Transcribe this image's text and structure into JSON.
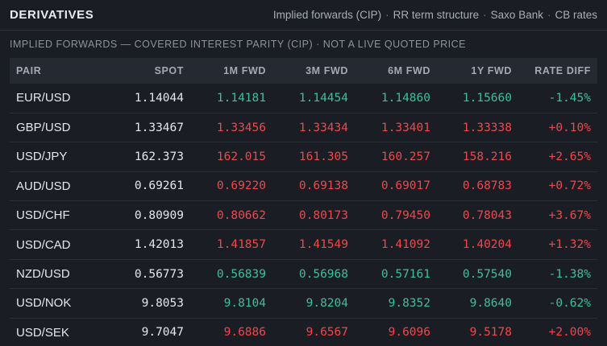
{
  "header": {
    "title": "DERIVATIVES",
    "tabs": [
      "Implied forwards (CIP)",
      "RR term structure",
      "Saxo Bank",
      "CB rates"
    ],
    "separator": "·"
  },
  "subtitle": "IMPLIED FORWARDS — COVERED INTEREST PARITY (CIP) · NOT A LIVE QUOTED PRICE",
  "colors": {
    "positive": "#3fbf9c",
    "negative": "#f0474c",
    "background": "#1a1d23",
    "header_row": "#252931"
  },
  "table": {
    "columns": [
      "PAIR",
      "SPOT",
      "1M FWD",
      "3M FWD",
      "6M FWD",
      "1Y FWD",
      "RATE DIFF"
    ],
    "rows": [
      {
        "pair": "EUR/USD",
        "spot": "1.14044",
        "fwd": [
          "1.14181",
          "1.14454",
          "1.14860",
          "1.15660"
        ],
        "diff": "-1.45%",
        "dir": "up"
      },
      {
        "pair": "GBP/USD",
        "spot": "1.33467",
        "fwd": [
          "1.33456",
          "1.33434",
          "1.33401",
          "1.33338"
        ],
        "diff": "+0.10%",
        "dir": "down"
      },
      {
        "pair": "USD/JPY",
        "spot": "162.373",
        "fwd": [
          "162.015",
          "161.305",
          "160.257",
          "158.216"
        ],
        "diff": "+2.65%",
        "dir": "down"
      },
      {
        "pair": "AUD/USD",
        "spot": "0.69261",
        "fwd": [
          "0.69220",
          "0.69138",
          "0.69017",
          "0.68783"
        ],
        "diff": "+0.72%",
        "dir": "down"
      },
      {
        "pair": "USD/CHF",
        "spot": "0.80909",
        "fwd": [
          "0.80662",
          "0.80173",
          "0.79450",
          "0.78043"
        ],
        "diff": "+3.67%",
        "dir": "down"
      },
      {
        "pair": "USD/CAD",
        "spot": "1.42013",
        "fwd": [
          "1.41857",
          "1.41549",
          "1.41092",
          "1.40204"
        ],
        "diff": "+1.32%",
        "dir": "down"
      },
      {
        "pair": "NZD/USD",
        "spot": "0.56773",
        "fwd": [
          "0.56839",
          "0.56968",
          "0.57161",
          "0.57540"
        ],
        "diff": "-1.38%",
        "dir": "up"
      },
      {
        "pair": "USD/NOK",
        "spot": "9.8053",
        "fwd": [
          "9.8104",
          "9.8204",
          "9.8352",
          "9.8640"
        ],
        "diff": "-0.62%",
        "dir": "up"
      },
      {
        "pair": "USD/SEK",
        "spot": "9.7047",
        "fwd": [
          "9.6886",
          "9.6567",
          "9.6096",
          "9.5178"
        ],
        "diff": "+2.00%",
        "dir": "down"
      }
    ]
  }
}
